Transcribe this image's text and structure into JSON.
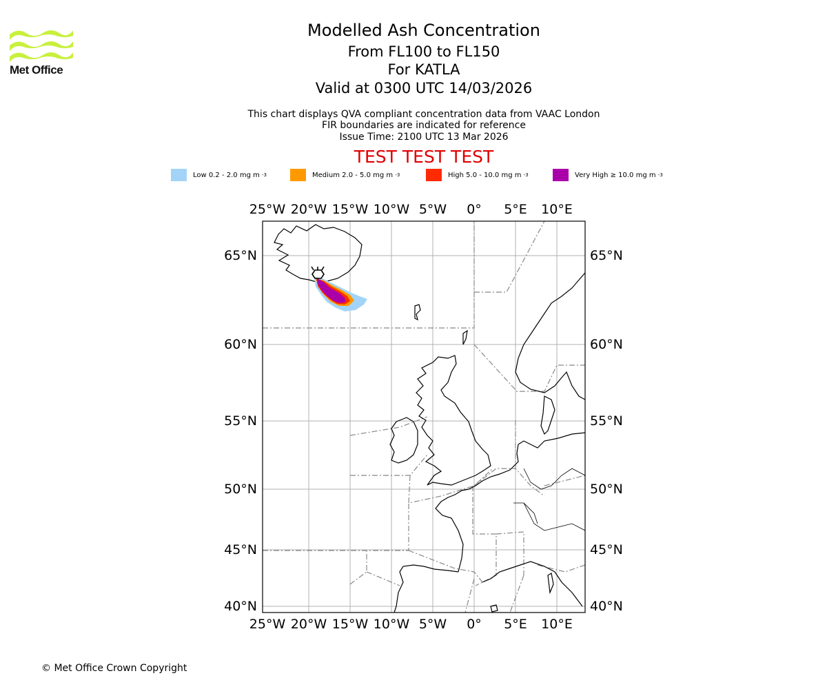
{
  "logo": {
    "name": "Met Office",
    "icon": "met-office-waves-logo",
    "color": "#c8f03c"
  },
  "title": {
    "line1": "Modelled Ash Concentration",
    "line2": "From FL100 to FL150",
    "line3": "For KATLA",
    "line4": "Valid at 0300 UTC 14/03/2026"
  },
  "subtitle": {
    "line1": "This chart displays QVA compliant concentration data from VAAC London",
    "line2": "FIR boundaries are indicated for reference",
    "line3": "Issue Time: 2100 UTC 13 Mar 2026"
  },
  "test_banner": "TEST TEST TEST",
  "legend": [
    {
      "label": "Low 0.2 - 2.0 mg m",
      "exp": "-3",
      "color": "#a3d4f8"
    },
    {
      "label": "Medium 2.0 - 5.0 mg m",
      "exp": "-3",
      "color": "#ff9900"
    },
    {
      "label": "High 5.0 - 10.0 mg m",
      "exp": "-3",
      "color": "#ff2a00"
    },
    {
      "label": "Very High ≥ 10.0 mg m",
      "exp": "-3",
      "color": "#aa00aa"
    }
  ],
  "map": {
    "lon_ticks": [
      "25°W",
      "20°W",
      "15°W",
      "10°W",
      "5°W",
      "0°",
      "5°E",
      "10°E"
    ],
    "lat_ticks": [
      "65°N",
      "60°N",
      "55°N",
      "50°N",
      "45°N",
      "40°N"
    ],
    "volcano": "Katla"
  },
  "copyright": "© Met Office Crown Copyright"
}
